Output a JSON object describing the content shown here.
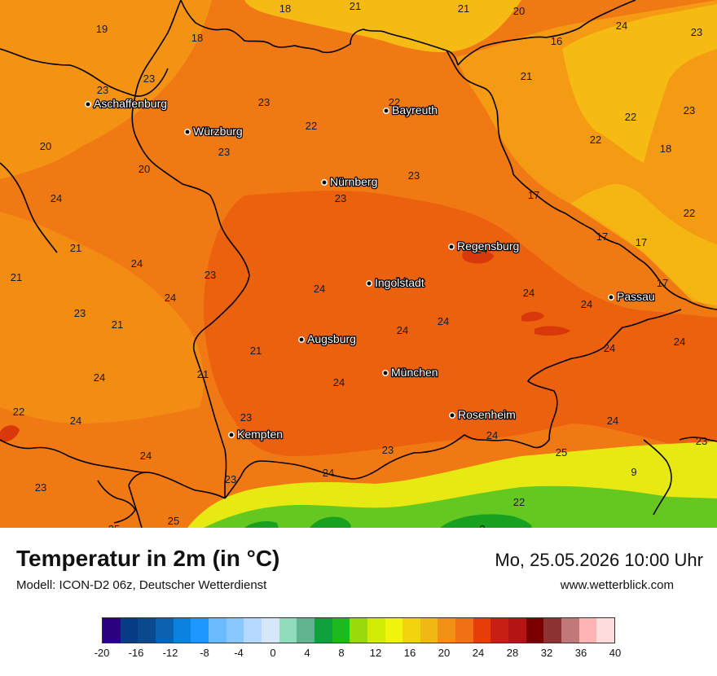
{
  "map": {
    "cities": [
      {
        "name": "Aschaffenburg"
      },
      {
        "name": "Würzburg"
      },
      {
        "name": "Bayreuth"
      },
      {
        "name": "Nürnberg"
      },
      {
        "name": "Regensburg"
      },
      {
        "name": "Ingolstadt"
      },
      {
        "name": "Passau"
      },
      {
        "name": "Augsburg"
      },
      {
        "name": "München"
      },
      {
        "name": "Rosenheim"
      },
      {
        "name": "Kempten"
      }
    ],
    "values": [
      "19",
      "18",
      "18",
      "21",
      "21",
      "20",
      "24",
      "23",
      "16",
      "23",
      "23",
      "21",
      "23",
      "22",
      "22",
      "23",
      "22",
      "22",
      "23",
      "18",
      "20",
      "20",
      "23",
      "24",
      "23",
      "17",
      "22",
      "21",
      "23",
      "17",
      "17",
      "24",
      "17",
      "21",
      "24",
      "24",
      "24",
      "24",
      "24",
      "23",
      "24",
      "21",
      "21",
      "24",
      "24",
      "24",
      "24",
      "24",
      "21",
      "24",
      "22",
      "23",
      "24",
      "24",
      "24",
      "25",
      "23",
      "23",
      "24",
      "24",
      "23",
      "9",
      "23",
      "22",
      "25",
      "25",
      "2"
    ],
    "colors": {
      "base": "#f07914",
      "warm": "#ea5a0c",
      "cool": "#f59a13",
      "cooler": "#f5c114",
      "hot": "#d9380b",
      "alpine_yellow": "#e6ea12",
      "alpine_green": "#64c820",
      "alpine_dark": "#18a020",
      "border": "#000000"
    }
  },
  "footer": {
    "title": "Temperatur in 2m (in °C)",
    "model": "Modell: ICON-D2 06z, Deutscher Wetterdienst",
    "datetime": "Mo, 25.05.2026 10:00 Uhr",
    "site": "www.wetterblick.com"
  },
  "legend": {
    "colors": [
      "#2b0080",
      "#083c84",
      "#0a4a8c",
      "#0a62b0",
      "#0a82e0",
      "#1e96ff",
      "#6abaff",
      "#88c8ff",
      "#b4d8ff",
      "#d4e8fa",
      "#92dcbe",
      "#62b490",
      "#10a03c",
      "#1eb91e",
      "#9ada0c",
      "#d2ec04",
      "#f0f40a",
      "#f2d40c",
      "#f0b814",
      "#f09014",
      "#f07014",
      "#e83c0c",
      "#c81e14",
      "#b41414",
      "#780000",
      "#8c3232",
      "#c07878",
      "#ffb4b4",
      "#ffdcdc"
    ],
    "ticks": [
      "-20",
      "-16",
      "-12",
      "-8",
      "-4",
      "0",
      "4",
      "8",
      "12",
      "16",
      "20",
      "24",
      "28",
      "32",
      "36",
      "40"
    ]
  }
}
